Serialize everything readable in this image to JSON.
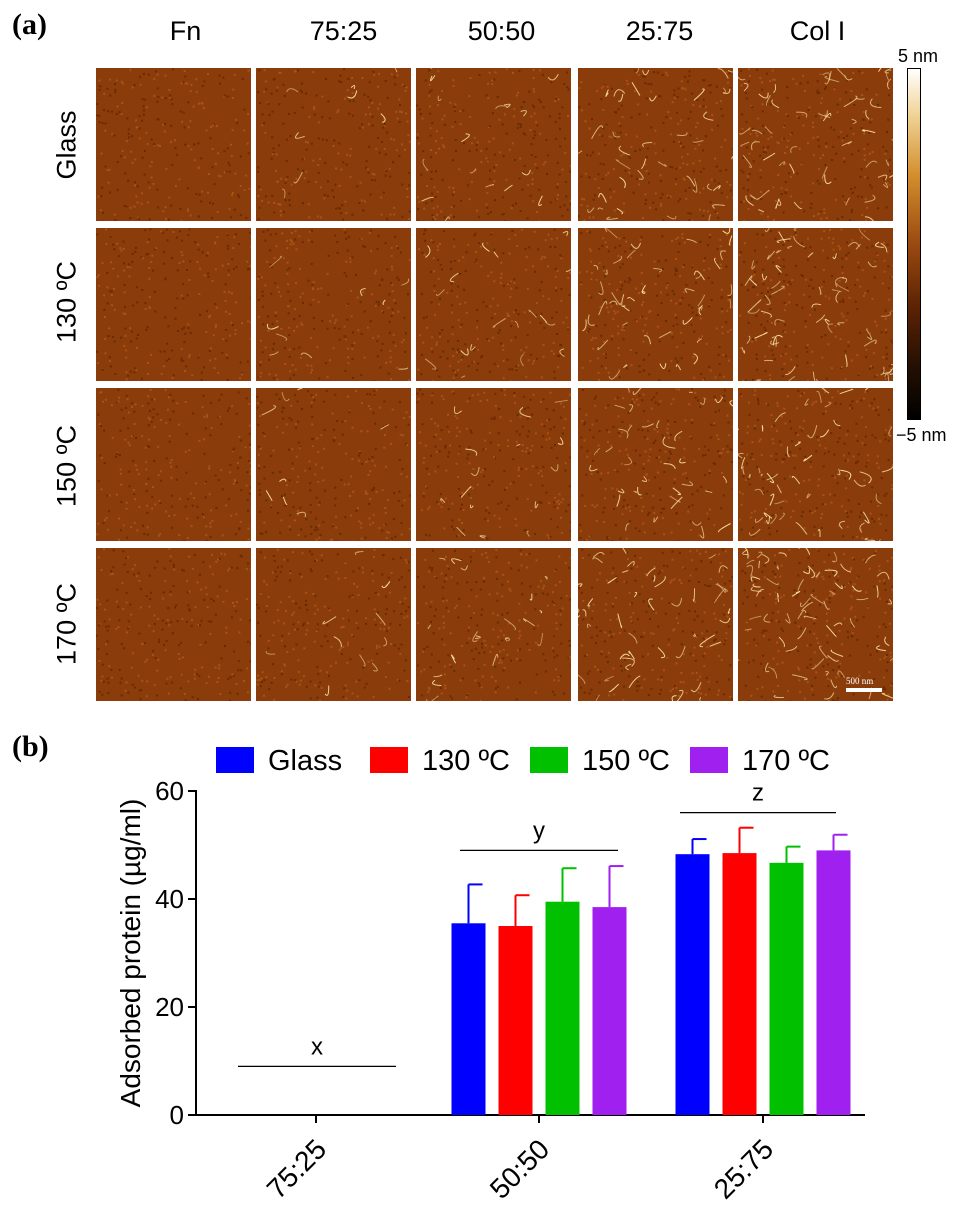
{
  "panel_a": {
    "label": "(a)",
    "columns": [
      "Fn",
      "75:25",
      "50:50",
      "25:75",
      "Col I"
    ],
    "rows": [
      "Glass",
      "130 ºC",
      "150 ºC",
      "170 ºC"
    ],
    "colorbar": {
      "max_label": "5 nm",
      "min_label": "−5 nm"
    },
    "scale_bar": "500 nm",
    "colors": {
      "base": "#8a3c0a",
      "highlight": "#f6dca0"
    }
  },
  "panel_b": {
    "label": "(b)"
  },
  "chart_data": {
    "type": "bar",
    "categories": [
      "75:25",
      "50:50",
      "25:75"
    ],
    "series": [
      {
        "name": "Glass",
        "color": "#0000ff",
        "values": [
          0,
          35.5,
          48.3
        ],
        "errors": [
          0,
          7.2,
          2.8
        ]
      },
      {
        "name": "130 ºC",
        "color": "#ff0000",
        "values": [
          0,
          35.0,
          48.5
        ],
        "errors": [
          0,
          5.7,
          4.7
        ]
      },
      {
        "name": "150 ºC",
        "color": "#00c000",
        "values": [
          0,
          39.5,
          46.7
        ],
        "errors": [
          0,
          6.2,
          3.0
        ]
      },
      {
        "name": "170 ºC",
        "color": "#a020f0",
        "values": [
          0,
          38.5,
          49.0
        ],
        "errors": [
          0,
          7.6,
          2.9
        ]
      }
    ],
    "ylabel": "Adsorbed protein (µg/ml)",
    "ylim": [
      0,
      60
    ],
    "yticks": [
      0,
      20,
      40,
      60
    ],
    "group_letters": [
      {
        "label": "x",
        "category": "75:25",
        "y": 9
      },
      {
        "label": "y",
        "category": "50:50",
        "y": 49
      },
      {
        "label": "z",
        "category": "25:75",
        "y": 56
      }
    ],
    "legend_position": "top",
    "grid": false
  }
}
